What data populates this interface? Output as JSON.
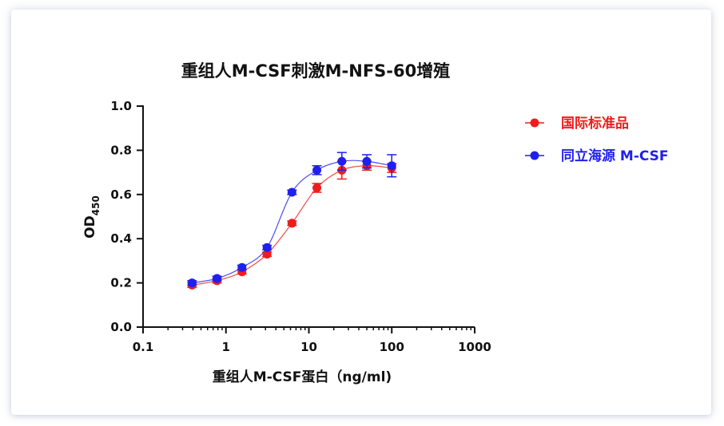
{
  "chart_data": {
    "type": "scatter",
    "title": "重组人M-CSF刺激M-NFS-60增殖",
    "xlabel": "重组人M-CSF蛋白（ng/ml)",
    "ylabel": "OD",
    "ylabel_sub": "450",
    "xscale": "log",
    "xlim": [
      0.1,
      1000
    ],
    "ylim": [
      0.0,
      1.0
    ],
    "x_ticks": [
      0.1,
      1,
      10,
      100,
      1000
    ],
    "x_tick_labels": [
      "0.1",
      "1",
      "10",
      "100",
      "1000"
    ],
    "y_ticks": [
      0.0,
      0.2,
      0.4,
      0.6,
      0.8,
      1.0
    ],
    "y_tick_labels": [
      "0.0",
      "0.2",
      "0.4",
      "0.6",
      "0.8",
      "1.0"
    ],
    "legend_position": "right",
    "x": [
      0.39,
      0.78,
      1.56,
      3.13,
      6.25,
      12.5,
      25,
      50,
      100
    ],
    "series": [
      {
        "name": "国际标准品",
        "color": "#ee1c1c",
        "values": [
          0.19,
          0.21,
          0.25,
          0.33,
          0.47,
          0.63,
          0.71,
          0.73,
          0.72
        ],
        "errors": [
          0.01,
          0.01,
          0.01,
          0.01,
          0.01,
          0.02,
          0.04,
          0.02,
          0.02
        ]
      },
      {
        "name": "同立海源 M-CSF",
        "color": "#1f1fee",
        "values": [
          0.2,
          0.22,
          0.27,
          0.36,
          0.61,
          0.71,
          0.75,
          0.75,
          0.73
        ],
        "errors": [
          0.01,
          0.01,
          0.01,
          0.01,
          0.01,
          0.02,
          0.04,
          0.03,
          0.05
        ]
      }
    ]
  }
}
